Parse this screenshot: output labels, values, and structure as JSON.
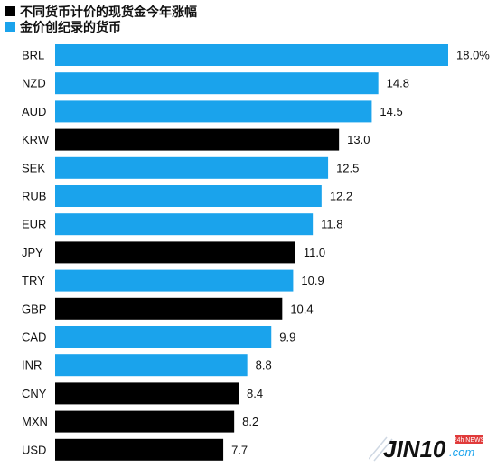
{
  "legend": {
    "items": [
      {
        "label": "不同货币计价的现货金今年涨幅",
        "color": "#000000"
      },
      {
        "label": "金价创纪录的货币",
        "color": "#1aa3ec"
      }
    ]
  },
  "chart_data": {
    "type": "bar",
    "orientation": "horizontal",
    "categories": [
      "BRL",
      "NZD",
      "AUD",
      "KRW",
      "SEK",
      "RUB",
      "EUR",
      "JPY",
      "TRY",
      "GBP",
      "CAD",
      "INR",
      "CNY",
      "MXN",
      "USD"
    ],
    "values": [
      18.0,
      14.8,
      14.5,
      13.0,
      12.5,
      12.2,
      11.8,
      11.0,
      10.9,
      10.4,
      9.9,
      8.8,
      8.4,
      8.2,
      7.7
    ],
    "value_labels": [
      "18.0%",
      "14.8",
      "14.5",
      "13.0",
      "12.5",
      "12.2",
      "11.8",
      "11.0",
      "10.9",
      "10.4",
      "9.9",
      "8.8",
      "8.4",
      "8.2",
      "7.7"
    ],
    "record_high": [
      true,
      true,
      true,
      false,
      true,
      true,
      true,
      false,
      true,
      false,
      true,
      true,
      false,
      false,
      false
    ],
    "colors": {
      "record": "#1aa3ec",
      "normal": "#000000"
    },
    "xlim": [
      0,
      18
    ],
    "grid": false,
    "legend_position": "top-left"
  },
  "watermark": {
    "brand": "JIN10",
    "suffix": ".com",
    "badge": "24h NEWS"
  }
}
